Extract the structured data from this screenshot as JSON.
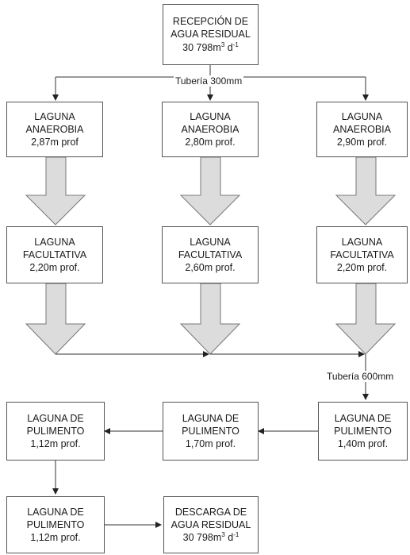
{
  "reception": {
    "line1": "RECEPCIÓN DE",
    "line2": "AGUA RESIDUAL",
    "flow_base": "30 798m",
    "flow_exp1": "3",
    "flow_unit": " d",
    "flow_exp2": "-1"
  },
  "pipe_top": "Tubería 300mm",
  "pipe_mid": "Tubería 600mm",
  "anaerobic": [
    {
      "line1": "LAGUNA",
      "line2": "ANAEROBIA",
      "line3": "2,87m prof"
    },
    {
      "line1": "LAGUNA",
      "line2": "ANAEROBIA",
      "line3": "2,80m prof."
    },
    {
      "line1": "LAGUNA",
      "line2": "ANAEROBIA",
      "line3": "2,90m prof."
    }
  ],
  "facultative": [
    {
      "line1": "LAGUNA",
      "line2": "FACULTATIVA",
      "line3": "2,20m prof."
    },
    {
      "line1": "LAGUNA",
      "line2": "FACULTATIVA",
      "line3": "2,60m prof."
    },
    {
      "line1": "LAGUNA",
      "line2": "FACULTATIVA",
      "line3": "2,20m  prof."
    }
  ],
  "polishing": [
    {
      "line1": "LAGUNA DE",
      "line2": "PULIMENTO",
      "line3": "1,12m prof."
    },
    {
      "line1": "LAGUNA DE",
      "line2": "PULIMENTO",
      "line3": "1,70m prof."
    },
    {
      "line1": "LAGUNA DE",
      "line2": "PULIMENTO",
      "line3": "1,40m prof."
    },
    {
      "line1": "LAGUNA DE",
      "line2": "PULIMENTO",
      "line3": "1,12m prof."
    }
  ],
  "discharge": {
    "line1": "DESCARGA DE",
    "line2": "AGUA RESIDUAL",
    "flow_base": "30 798m",
    "flow_exp1": "3",
    "flow_unit": " d",
    "flow_exp2": "-1"
  },
  "colors": {
    "line": "#333333",
    "box_border": "#555555",
    "big_arrow_fill": "#dcdcdc",
    "big_arrow_stroke": "#777777"
  }
}
